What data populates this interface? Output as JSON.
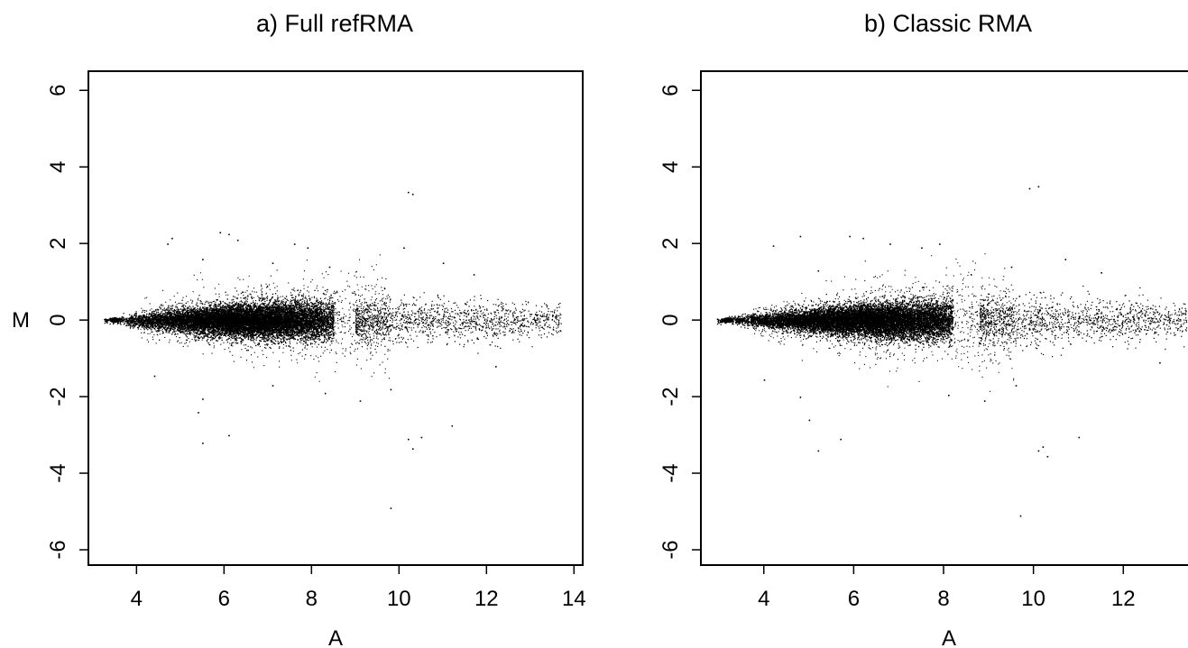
{
  "chart_data": [
    {
      "type": "scatter",
      "title": "a) Full refRMA",
      "xlabel": "A",
      "ylabel": "M",
      "xlim": [
        2.9,
        14.2
      ],
      "ylim": [
        -6.4,
        6.5
      ],
      "x_ticks": [
        4,
        6,
        8,
        10,
        12,
        14
      ],
      "x_tick_labels": [
        "4",
        "6",
        "8",
        "10",
        "12",
        "14"
      ],
      "y_ticks": [
        -6,
        -4,
        -2,
        0,
        2,
        4,
        6
      ],
      "y_tick_labels": [
        "-6",
        "-4",
        "-2",
        "0",
        "2",
        "4",
        "6"
      ],
      "grid": false,
      "color": "#000000",
      "series": [
        {
          "cloud": {
            "x_range": [
              3.25,
              13.7
            ],
            "dense_center": 6.6,
            "dense_halfwidth": 2.7,
            "dense_to": 8.5,
            "sparse_from": 9.0,
            "spread": [
              [
                3.3,
                0.03
              ],
              [
                4.5,
                0.12
              ],
              [
                6.5,
                0.22
              ],
              [
                8.0,
                0.25
              ],
              [
                10.0,
                0.28
              ],
              [
                12.0,
                0.25
              ],
              [
                13.7,
                0.2
              ]
            ]
          },
          "outliers": [
            [
              10.2,
              3.35
            ],
            [
              10.3,
              3.3
            ],
            [
              5.9,
              2.3
            ],
            [
              6.1,
              2.25
            ],
            [
              4.8,
              2.15
            ],
            [
              4.7,
              2.0
            ],
            [
              7.6,
              2.0
            ],
            [
              7.9,
              1.9
            ],
            [
              10.1,
              1.9
            ],
            [
              6.3,
              2.1
            ],
            [
              5.5,
              1.6
            ],
            [
              8.4,
              1.4
            ],
            [
              11.7,
              1.2
            ],
            [
              7.1,
              1.5
            ],
            [
              11.0,
              1.5
            ],
            [
              10.2,
              -3.1
            ],
            [
              10.3,
              -3.35
            ],
            [
              10.5,
              -3.05
            ],
            [
              5.5,
              -3.2
            ],
            [
              6.1,
              -3.0
            ],
            [
              9.8,
              -4.9
            ],
            [
              5.4,
              -2.4
            ],
            [
              5.5,
              -2.05
            ],
            [
              9.1,
              -2.1
            ],
            [
              8.3,
              -1.9
            ],
            [
              11.2,
              -2.75
            ],
            [
              7.1,
              -1.7
            ],
            [
              4.4,
              -1.45
            ],
            [
              9.8,
              -1.8
            ],
            [
              12.2,
              -1.2
            ]
          ]
        }
      ]
    },
    {
      "type": "scatter",
      "title": "b) Classic RMA",
      "xlabel": "A",
      "ylabel": "",
      "xlim": [
        2.6,
        13.6
      ],
      "ylim": [
        -6.4,
        6.5
      ],
      "x_ticks": [
        4,
        6,
        8,
        10,
        12
      ],
      "x_tick_labels": [
        "4",
        "6",
        "8",
        "10",
        "12"
      ],
      "y_ticks": [
        -6,
        -4,
        -2,
        0,
        2,
        4,
        6
      ],
      "y_tick_labels": [
        "-6",
        "-4",
        "-2",
        "0",
        "2",
        "4",
        "6"
      ],
      "grid": false,
      "color": "#000000",
      "series": [
        {
          "cloud": {
            "x_range": [
              2.95,
              13.4
            ],
            "dense_center": 6.4,
            "dense_halfwidth": 2.8,
            "dense_to": 8.2,
            "sparse_from": 8.8,
            "spread": [
              [
                3.0,
                0.03
              ],
              [
                4.5,
                0.12
              ],
              [
                6.5,
                0.22
              ],
              [
                8.0,
                0.27
              ],
              [
                10.0,
                0.3
              ],
              [
                12.0,
                0.28
              ],
              [
                13.4,
                0.22
              ]
            ]
          },
          "outliers": [
            [
              9.9,
              3.45
            ],
            [
              10.1,
              3.5
            ],
            [
              5.9,
              2.2
            ],
            [
              6.2,
              2.15
            ],
            [
              4.8,
              2.2
            ],
            [
              4.2,
              1.95
            ],
            [
              7.5,
              1.9
            ],
            [
              7.9,
              2.0
            ],
            [
              10.7,
              1.6
            ],
            [
              11.5,
              1.25
            ],
            [
              9.5,
              1.4
            ],
            [
              5.2,
              1.3
            ],
            [
              8.6,
              1.2
            ],
            [
              6.8,
              2.0
            ],
            [
              10.2,
              -3.3
            ],
            [
              10.3,
              -3.55
            ],
            [
              10.1,
              -3.4
            ],
            [
              11.0,
              -3.05
            ],
            [
              5.2,
              -3.4
            ],
            [
              5.7,
              -3.1
            ],
            [
              9.7,
              -5.1
            ],
            [
              5.0,
              -2.6
            ],
            [
              4.8,
              -2.0
            ],
            [
              8.9,
              -2.1
            ],
            [
              8.1,
              -1.95
            ],
            [
              4.0,
              -1.55
            ],
            [
              9.6,
              -1.7
            ],
            [
              12.8,
              -1.1
            ]
          ]
        }
      ]
    }
  ]
}
